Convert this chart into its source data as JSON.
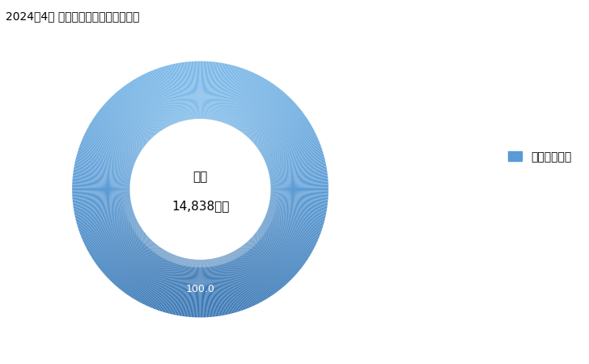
{
  "title": "2024年4月 輸入相手国のシェア（％）",
  "slices": [
    100.0
  ],
  "labels": [
    "シンガポール"
  ],
  "colors": [
    "#5B9BD5"
  ],
  "color_top": "#7ab8e8",
  "color_mid": "#5B9BD5",
  "color_bottom": "#3a78b5",
  "color_inner_highlight": "#9dd0f0",
  "center_label_line1": "総額",
  "center_label_line2": "14,838万円",
  "slice_label": "100.0",
  "background_color": "#FFFFFF",
  "legend_label": "シンガポール"
}
